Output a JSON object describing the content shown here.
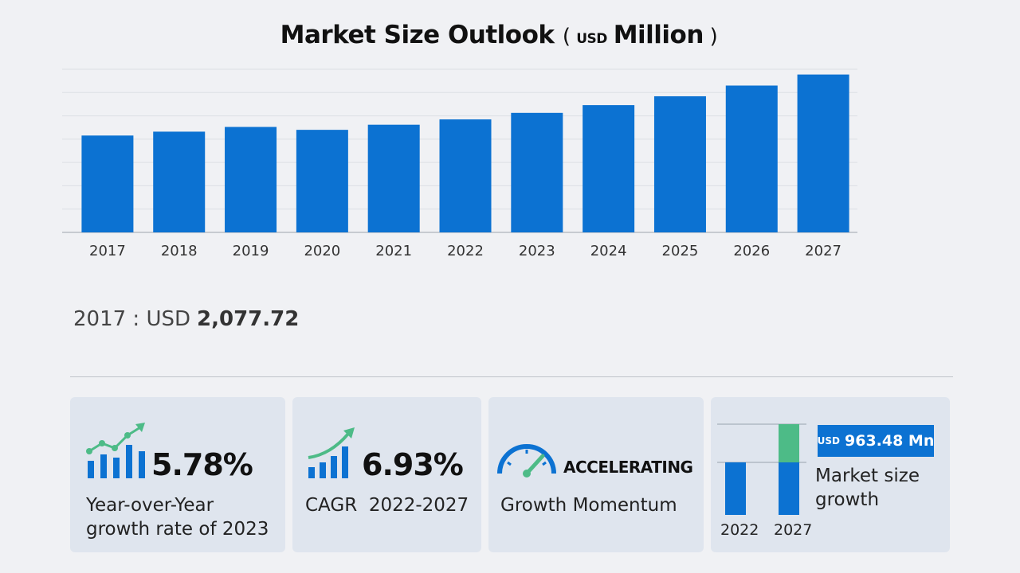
{
  "chart_data": {
    "type": "bar",
    "title": "Market Size Outlook",
    "unit_prefix": "USD",
    "unit_suffix": "Million",
    "categories": [
      "2017",
      "2018",
      "2019",
      "2020",
      "2021",
      "2022",
      "2023",
      "2024",
      "2025",
      "2026",
      "2027"
    ],
    "values": [
      2077.72,
      2161,
      2262,
      2200,
      2310,
      2424,
      2564,
      2730,
      2920,
      3150,
      3387
    ],
    "ylim": [
      0,
      3500
    ],
    "grid": true,
    "color": "#0c72d2"
  },
  "base_value": {
    "label": "2017 : USD",
    "value": "2,077.72"
  },
  "cards": {
    "yoy": {
      "value": "5.78%",
      "label_line1": "Year-over-Year",
      "label_line2": "growth rate of 2023",
      "icon": "growth-chart-icon"
    },
    "cagr": {
      "value": "6.93%",
      "label": "CAGR  2022-2027",
      "icon": "trend-arrow-icon"
    },
    "momentum": {
      "value": "ACCELERATING",
      "label": "Growth Momentum",
      "icon": "speedometer-icon"
    },
    "market_growth": {
      "badge_prefix": "USD",
      "badge_value": "963.48 Mn",
      "label_line1": "Market size",
      "label_line2": "growth",
      "year_start": "2022",
      "year_end": "2027",
      "colors": {
        "base": "#0c72d2",
        "increment": "#4dbb87"
      }
    }
  }
}
